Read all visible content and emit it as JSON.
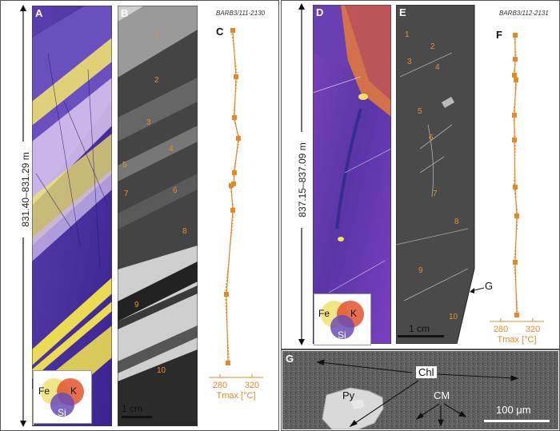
{
  "left": {
    "depth_label": "831.40–831.29 m",
    "panels": {
      "A": "A",
      "B": "B",
      "C": "C"
    },
    "ref": "BARB3/111-2130",
    "scale_bar": "1 cm",
    "venn": {
      "fe": "Fe",
      "k": "K",
      "si": "Si"
    },
    "samples": [
      "1",
      "2",
      "3",
      "4",
      "5",
      "6",
      "7",
      "8",
      "9",
      "10"
    ],
    "axis": {
      "min": "280",
      "max": "320",
      "label": "Tmax [°C]"
    }
  },
  "right": {
    "depth_label": "837.15–837.09 m",
    "panels": {
      "D": "D",
      "E": "E",
      "F": "F",
      "G": "G"
    },
    "ref": "BARB3/112-2131",
    "scale_bar": "1 cm",
    "venn": {
      "fe": "Fe",
      "k": "K",
      "si": "Si"
    },
    "samples": [
      "1",
      "2",
      "3",
      "4",
      "5",
      "6",
      "7",
      "8",
      "9",
      "10"
    ],
    "axis": {
      "min": "280",
      "max": "320",
      "label": "Tmax [°C]"
    },
    "g_marker": "G"
  },
  "bottom": {
    "panel": "G",
    "chl": "Chl",
    "py": "Py",
    "cm": "CM",
    "scale_bar": "100 μm"
  },
  "chart_data": [
    {
      "type": "line",
      "panel": "C",
      "xlabel": "Tmax [°C]",
      "xlim": [
        270,
        330
      ],
      "x_ticks": [
        280,
        320
      ],
      "samples": [
        1,
        2,
        3,
        4,
        5,
        6,
        7,
        8,
        9,
        10
      ],
      "tmax": [
        296,
        300,
        298,
        303,
        298,
        297,
        294,
        296,
        288,
        290
      ]
    },
    {
      "type": "line",
      "panel": "F",
      "xlabel": "Tmax [°C]",
      "xlim": [
        270,
        330
      ],
      "x_ticks": [
        280,
        320
      ],
      "samples": [
        1,
        2,
        3,
        4,
        5,
        6,
        7,
        8,
        9,
        10
      ],
      "tmax": [
        298,
        298,
        297,
        299,
        297,
        297,
        298,
        300,
        298,
        300
      ]
    }
  ]
}
